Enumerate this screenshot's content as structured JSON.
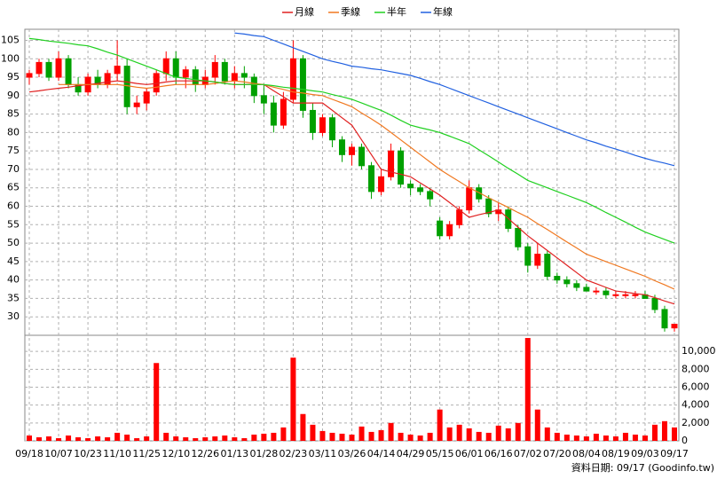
{
  "chart_data": {
    "type": "candlestick",
    "categories": [
      "09/18",
      null,
      null,
      "10/07",
      null,
      null,
      "10/23",
      null,
      null,
      "11/10",
      null,
      null,
      "11/25",
      null,
      null,
      "12/10",
      null,
      null,
      "12/26",
      null,
      null,
      "01/13",
      null,
      null,
      "01/28",
      null,
      null,
      "02/23",
      null,
      null,
      "03/11",
      null,
      null,
      "03/26",
      null,
      null,
      "04/14",
      null,
      null,
      "04/29",
      null,
      null,
      "05/15",
      null,
      null,
      "06/01",
      null,
      null,
      "06/16",
      null,
      null,
      "07/02",
      null,
      null,
      "07/20",
      null,
      null,
      "08/04",
      null,
      null,
      "08/19",
      null,
      null,
      "09/03",
      null,
      null,
      "09/17"
    ],
    "open": [
      95,
      96,
      99,
      95,
      100,
      93,
      91,
      95,
      93,
      96,
      98,
      87,
      88,
      91,
      96,
      100,
      95,
      97,
      93,
      95,
      99,
      94,
      96,
      95,
      90,
      88,
      82,
      89,
      100,
      86,
      80,
      84,
      78,
      74,
      76,
      71,
      64,
      68,
      75,
      66,
      65,
      64,
      56,
      52,
      55,
      59,
      65,
      62,
      58,
      59,
      54,
      49,
      44,
      47,
      41,
      40,
      39,
      38,
      37,
      37,
      36,
      36,
      36,
      36,
      35,
      32,
      27
    ],
    "high": [
      97,
      100,
      100,
      102,
      101,
      95,
      96,
      97,
      97,
      105,
      100,
      90,
      92,
      97,
      102,
      102,
      98,
      98,
      97,
      101,
      100,
      98,
      98,
      96,
      93,
      90,
      91,
      105,
      101,
      88,
      85,
      85,
      79,
      77,
      77,
      72,
      70,
      77,
      76,
      67,
      66,
      65,
      57,
      56,
      60,
      67,
      66,
      63,
      61,
      60,
      55,
      50,
      50,
      48,
      42,
      41,
      40,
      39,
      38,
      38,
      37,
      37,
      37,
      37,
      36,
      33,
      28
    ],
    "low": [
      93,
      95,
      94,
      94,
      92,
      90,
      90,
      92,
      92,
      94,
      85,
      85,
      86,
      90,
      94,
      93,
      92,
      91,
      92,
      93,
      93,
      92,
      92,
      88,
      85,
      80,
      81,
      88,
      84,
      78,
      79,
      76,
      72,
      71,
      70,
      62,
      63,
      67,
      65,
      63,
      63,
      60,
      51,
      51,
      54,
      58,
      61,
      57,
      56,
      53,
      48,
      42,
      43,
      40,
      39,
      38,
      37,
      37,
      36,
      35,
      35,
      35,
      35,
      35,
      31,
      26,
      26
    ],
    "close": [
      96,
      99,
      95,
      100,
      93,
      91,
      95,
      93,
      96,
      98,
      87,
      88,
      91,
      96,
      100,
      95,
      97,
      93,
      95,
      99,
      94,
      96,
      95,
      90,
      88,
      82,
      89,
      100,
      86,
      80,
      84,
      78,
      74,
      76,
      71,
      64,
      68,
      75,
      66,
      65,
      64,
      62,
      52,
      55,
      59,
      65,
      62,
      58,
      59,
      54,
      49,
      44,
      47,
      41,
      40,
      39,
      38,
      37,
      37,
      36,
      36,
      36,
      36,
      35,
      32,
      27,
      28
    ],
    "up_color": "#ff0000",
    "down_color": "#00a000",
    "series": [
      {
        "name": "月線",
        "color": "#e02020",
        "values": [
          91,
          91.3,
          91.7,
          92,
          92.3,
          92.7,
          93,
          93.3,
          93.7,
          94,
          93.7,
          93.3,
          93,
          93.3,
          93.7,
          94,
          94,
          94,
          94,
          93.7,
          93.3,
          93,
          93,
          93,
          93,
          91.3,
          89.7,
          88,
          88,
          88,
          88,
          86,
          84,
          82,
          78,
          74,
          70,
          69.3,
          68.7,
          68,
          66.3,
          64.7,
          63,
          61,
          59,
          57,
          57.7,
          58.3,
          59,
          56.7,
          54.3,
          52,
          50,
          48,
          46,
          44,
          42,
          40,
          39,
          38,
          37,
          36.7,
          36.3,
          36,
          35.2,
          34.3,
          33.5
        ]
      },
      {
        "name": "季線",
        "color": "#f07820",
        "values": [
          null,
          null,
          null,
          93,
          93,
          93,
          93,
          93,
          93,
          93,
          92.7,
          92.3,
          92,
          92.3,
          92.7,
          93,
          93,
          93,
          93,
          93.3,
          93.7,
          94,
          93.7,
          93.3,
          93,
          92.3,
          91.7,
          91,
          90.7,
          90.3,
          90,
          89,
          88,
          87,
          85.3,
          83.7,
          82,
          80,
          78,
          76,
          74,
          72,
          70,
          68.3,
          66.7,
          65,
          63.7,
          62.3,
          61,
          59.7,
          58.3,
          57,
          55.3,
          53.7,
          52,
          50.3,
          48.7,
          47,
          46,
          45,
          44,
          43,
          42,
          41,
          39.8,
          38.7,
          37.5
        ]
      },
      {
        "name": "半年",
        "color": "#20d020",
        "values": [
          105.5,
          105.2,
          104.8,
          104.5,
          104.2,
          103.8,
          103.5,
          102.7,
          101.8,
          101,
          100,
          99,
          98,
          97,
          96,
          95,
          94.7,
          94.3,
          94,
          93.7,
          93.3,
          93,
          93,
          93,
          93,
          92.7,
          92.3,
          92,
          91.7,
          91.3,
          91,
          90.3,
          89.7,
          89,
          88,
          87,
          86,
          84.7,
          83.3,
          82,
          81.3,
          80.7,
          80,
          79,
          78,
          77,
          75.3,
          73.7,
          72,
          70.3,
          68.7,
          67,
          66,
          65,
          64,
          63,
          62,
          61,
          59.7,
          58.3,
          57,
          55.7,
          54.3,
          53,
          52,
          51,
          50
        ]
      },
      {
        "name": "年線",
        "color": "#2060e0",
        "values": [
          null,
          null,
          null,
          null,
          null,
          null,
          null,
          null,
          null,
          null,
          null,
          null,
          null,
          null,
          null,
          null,
          null,
          null,
          null,
          null,
          null,
          107,
          106.7,
          106.3,
          106,
          105,
          104,
          103,
          102,
          101,
          100,
          99.3,
          98.7,
          98,
          97.7,
          97.3,
          97,
          96.5,
          96,
          95.5,
          94.7,
          93.8,
          93,
          92,
          91,
          90,
          89,
          88,
          87,
          86,
          85,
          84,
          83,
          82,
          81,
          80,
          79,
          78,
          77.2,
          76.3,
          75.5,
          74.7,
          73.8,
          73,
          72.3,
          71.7,
          71
        ]
      }
    ],
    "volume": {
      "color": "#ff0000",
      "axis": "y2",
      "values": [
        600,
        400,
        500,
        300,
        600,
        400,
        300,
        500,
        400,
        900,
        700,
        300,
        500,
        8700,
        900,
        500,
        400,
        300,
        400,
        500,
        600,
        400,
        300,
        700,
        800,
        900,
        1500,
        9300,
        3000,
        1800,
        1100,
        900,
        800,
        700,
        1600,
        1000,
        1200,
        2000,
        900,
        700,
        600,
        900,
        3500,
        1500,
        1800,
        1400,
        1000,
        900,
        1700,
        1400,
        2000,
        11500,
        3500,
        1500,
        900,
        700,
        600,
        500,
        800,
        600,
        500,
        900,
        700,
        600,
        1800,
        2200,
        1500
      ]
    },
    "ylim": [
      25,
      108
    ],
    "yticks": [
      30,
      35,
      40,
      45,
      50,
      55,
      60,
      65,
      70,
      75,
      80,
      85,
      90,
      95,
      100,
      105
    ],
    "y2lim": [
      0,
      11800
    ],
    "y2ticks": [
      0,
      {
        "value": 2000,
        "label": "2,000"
      },
      {
        "value": 4000,
        "label": "4,000"
      },
      {
        "value": 6000,
        "label": "6,000"
      },
      {
        "value": 8000,
        "label": "8,000"
      },
      {
        "value": 10000,
        "label": "10,000"
      }
    ],
    "grid": true,
    "source": "資料日期: 09/17  (Goodinfo.tw)"
  }
}
